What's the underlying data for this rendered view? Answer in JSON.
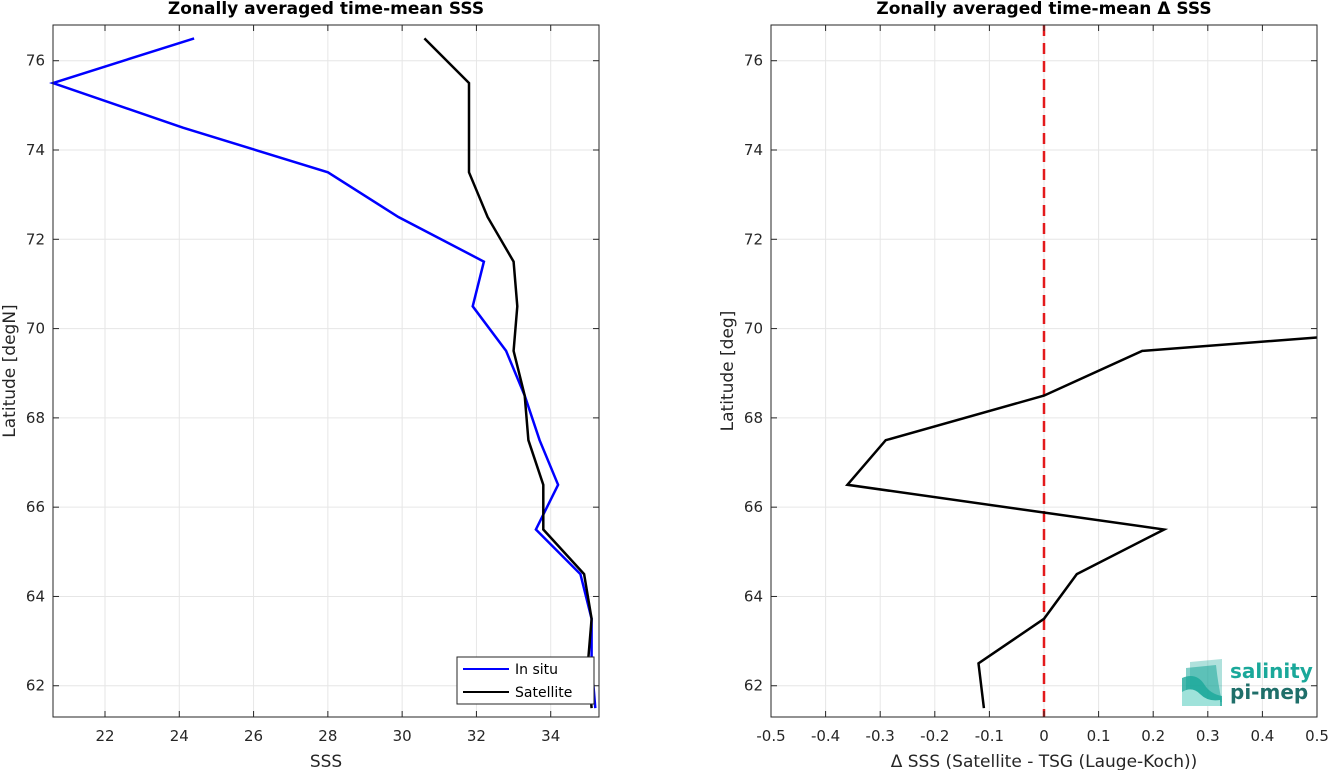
{
  "chart_data": [
    {
      "type": "line",
      "title": "Zonally averaged time-mean SSS",
      "xlabel": "SSS",
      "ylabel": "Latitude [degN]",
      "xlim": [
        20.6,
        35.3
      ],
      "ylim": [
        61.3,
        76.8
      ],
      "xticks": [
        22,
        24,
        26,
        28,
        30,
        32,
        34
      ],
      "yticks": [
        62,
        64,
        66,
        68,
        70,
        72,
        74,
        76
      ],
      "grid": true,
      "legend": "bottom-right",
      "series": [
        {
          "name": "In situ",
          "color": "#0000ff",
          "x": [
            24.4,
            20.6,
            24.1,
            28.0,
            29.9,
            32.2,
            31.9,
            32.8,
            33.3,
            33.7,
            34.2,
            33.6,
            34.8,
            35.1,
            35.1,
            35.2
          ],
          "y": [
            76.5,
            75.5,
            74.5,
            73.5,
            72.5,
            71.5,
            70.5,
            69.5,
            68.5,
            67.5,
            66.5,
            65.5,
            64.5,
            63.5,
            62.5,
            61.5
          ]
        },
        {
          "name": "Satellite",
          "color": "#000000",
          "x": [
            30.6,
            31.8,
            31.8,
            31.8,
            32.3,
            33.0,
            33.1,
            33.0,
            33.3,
            33.4,
            33.8,
            33.8,
            34.9,
            35.1,
            35.0,
            35.1
          ],
          "y": [
            76.5,
            75.5,
            74.5,
            73.5,
            72.5,
            71.5,
            70.5,
            69.5,
            68.5,
            67.5,
            66.5,
            65.5,
            64.5,
            63.5,
            62.5,
            61.5
          ]
        }
      ]
    },
    {
      "type": "line",
      "title": "Zonally averaged time-mean Δ SSS",
      "xlabel": "Δ SSS (Satellite - TSG (Lauge-Koch))",
      "ylabel": "Latitude [deg]",
      "xlim": [
        -0.5,
        0.5
      ],
      "ylim": [
        61.3,
        76.8
      ],
      "xticks": [
        -0.5,
        -0.4,
        -0.3,
        -0.2,
        -0.1,
        0,
        0.1,
        0.2,
        0.3,
        0.4,
        0.5
      ],
      "xtick_labels": [
        "-0.5",
        "-0.4",
        "-0.3",
        "-0.2",
        "-0.1",
        "0",
        "0.1",
        "0.2",
        "0.3",
        "0.4",
        "0.5"
      ],
      "yticks": [
        62,
        64,
        66,
        68,
        70,
        72,
        74,
        76
      ],
      "grid": true,
      "zero_line": {
        "x": 0,
        "color": "#e31a1c",
        "style": "dashed"
      },
      "series": [
        {
          "color": "#000000",
          "x": [
            0.5,
            0.18,
            0.0,
            -0.29,
            -0.36,
            0.22,
            0.06,
            0.0,
            -0.12,
            -0.11
          ],
          "y": [
            69.8,
            69.5,
            68.5,
            67.5,
            66.5,
            65.5,
            64.5,
            63.5,
            62.5,
            61.5
          ]
        }
      ]
    }
  ],
  "logo": {
    "line1": "salinity",
    "line2": "pi-mep",
    "color": "#1aa89a",
    "icon": "salinity-pimep-wave-logo"
  }
}
